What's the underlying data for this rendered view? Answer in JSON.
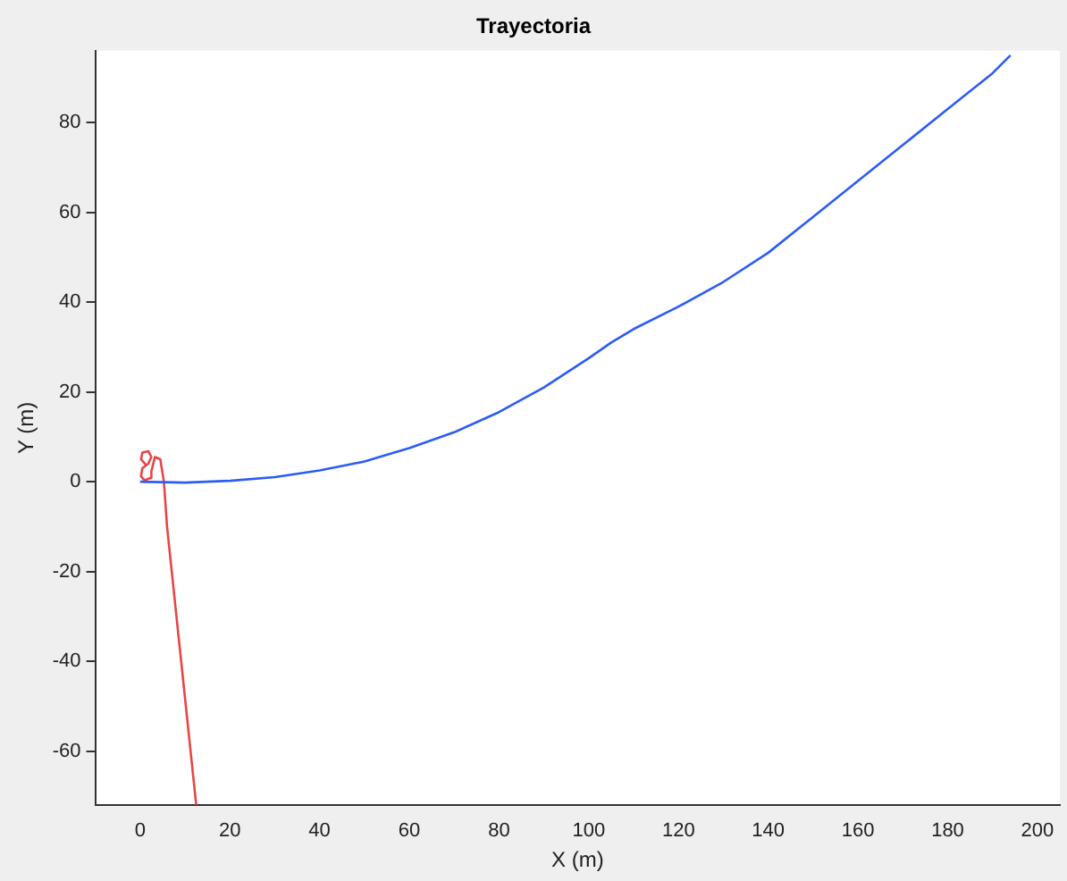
{
  "chart_data": {
    "type": "line",
    "title": "Trayectoria",
    "xlabel": "X (m)",
    "ylabel": "Y (m)",
    "xlim": [
      -10,
      205
    ],
    "ylim": [
      -72,
      96
    ],
    "xticks": [
      0,
      20,
      40,
      60,
      80,
      100,
      120,
      140,
      160,
      180,
      200
    ],
    "yticks": [
      -60,
      -40,
      -20,
      0,
      20,
      40,
      60,
      80
    ],
    "grid": false,
    "legend": false,
    "marker": "none",
    "line_style": "solid",
    "series": [
      {
        "color": "#2b5cf5",
        "x": [
          0,
          10,
          20,
          30,
          40,
          50,
          60,
          70,
          80,
          90,
          100,
          105,
          110,
          120,
          130,
          140,
          150,
          160,
          170,
          180,
          190,
          194
        ],
        "values": [
          0,
          -0.2,
          0.2,
          1,
          2.5,
          4.5,
          7.5,
          11,
          15.5,
          21,
          27.5,
          31,
          34,
          39,
          44.5,
          51,
          59,
          67,
          75,
          83,
          91,
          95
        ]
      },
      {
        "color": "#e84545",
        "x": [
          1.5,
          0.2,
          0.5,
          1.8,
          2.5,
          1.8,
          0.5,
          0.2,
          1,
          2.3,
          2.5,
          3.3,
          4.5,
          5.3,
          6,
          12.5
        ],
        "values": [
          3.5,
          5,
          6.5,
          6.8,
          5.5,
          4,
          3,
          1.2,
          0.3,
          0.8,
          2.3,
          5.5,
          5,
          0,
          -10,
          -72
        ]
      }
    ]
  }
}
